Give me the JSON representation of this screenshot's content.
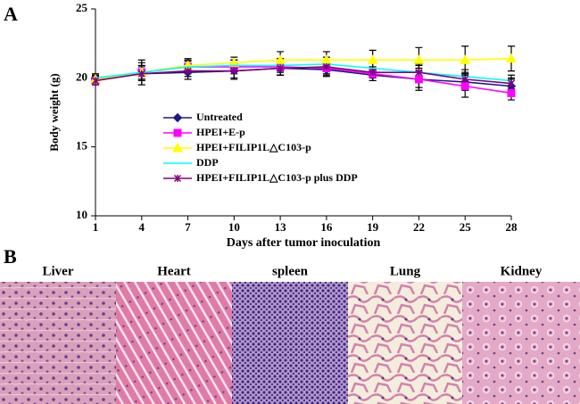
{
  "chart_data": {
    "type": "line",
    "panel_label": "A",
    "ylabel": "Body weight (g)",
    "xlabel": "Days after tumor inoculation",
    "x": [
      1,
      4,
      7,
      10,
      13,
      16,
      19,
      22,
      25,
      28
    ],
    "xlim": [
      1,
      28
    ],
    "xticks": [
      1,
      4,
      7,
      10,
      13,
      16,
      19,
      22,
      25,
      28
    ],
    "ylim": [
      10,
      25
    ],
    "yticks": [
      10,
      15,
      20,
      25
    ],
    "series": [
      {
        "name": "Untreated",
        "color": "#1a1a80",
        "marker": "diamond",
        "values": [
          19.9,
          20.3,
          20.4,
          20.5,
          20.7,
          20.6,
          20.2,
          19.9,
          19.7,
          19.4
        ],
        "errors": [
          0.3,
          0.8,
          0.5,
          0.6,
          0.5,
          0.4,
          0.4,
          0.6,
          0.6,
          0.5
        ]
      },
      {
        "name": "HPEI+E-p",
        "color": "#ff00ff",
        "marker": "square",
        "values": [
          19.8,
          20.4,
          20.8,
          20.8,
          20.8,
          20.7,
          20.3,
          19.9,
          19.4,
          18.9
        ],
        "errors": [
          0.3,
          0.5,
          0.5,
          0.5,
          0.6,
          0.6,
          0.5,
          0.8,
          0.8,
          0.5
        ]
      },
      {
        "name": "HPEI+FILIP1L△C103-p",
        "color": "#ffff00",
        "marker": "triangle",
        "values": [
          19.9,
          20.4,
          20.9,
          21.1,
          21.3,
          21.3,
          21.3,
          21.3,
          21.3,
          21.4
        ],
        "errors": [
          0.3,
          0.9,
          0.5,
          0.4,
          0.6,
          0.6,
          0.7,
          0.9,
          1.0,
          0.9
        ]
      },
      {
        "name": "DDP",
        "color": "#00ffff",
        "marker": "none",
        "values": [
          20.0,
          20.4,
          20.8,
          20.9,
          20.9,
          21.0,
          20.7,
          20.4,
          20.1,
          19.8
        ],
        "errors": [
          0.3,
          0.5,
          0.4,
          0.4,
          0.5,
          0.5,
          0.5,
          0.6,
          0.5,
          0.4
        ]
      },
      {
        "name": "HPEI+FILIP1L△C103-p plus DDP",
        "color": "#800080",
        "marker": "star",
        "values": [
          19.8,
          20.3,
          20.5,
          20.5,
          20.7,
          20.8,
          20.4,
          20.4,
          19.9,
          19.6
        ],
        "errors": [
          0.3,
          0.5,
          0.4,
          0.5,
          0.5,
          0.5,
          0.4,
          0.5,
          0.5,
          0.4
        ]
      }
    ]
  },
  "panel_b": {
    "label": "B",
    "tissues": [
      "Liver",
      "Heart",
      "spleen",
      "Lung",
      "Kidney"
    ]
  }
}
